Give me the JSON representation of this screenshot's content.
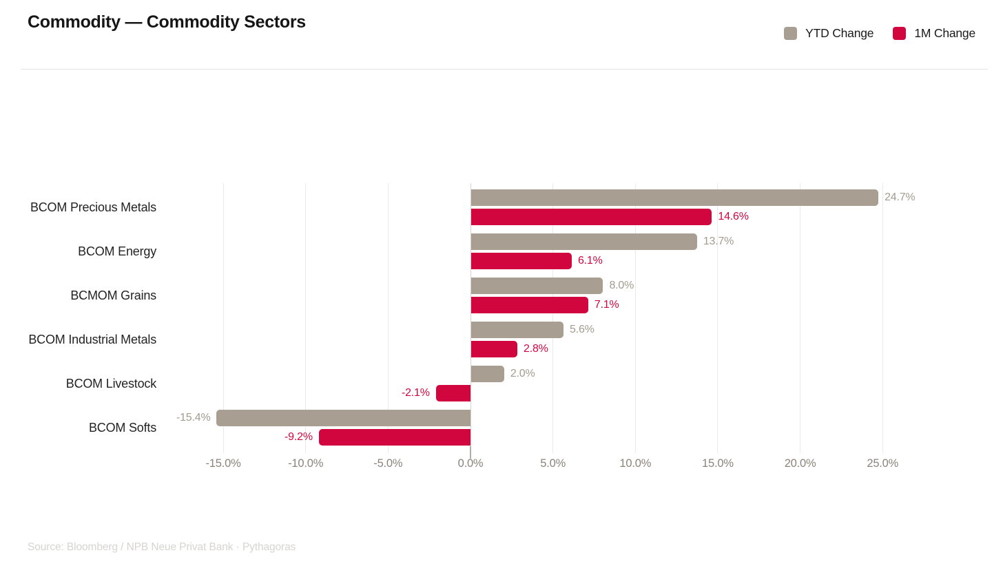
{
  "header": {
    "title": "Commodity — Commodity Sectors"
  },
  "legend": [
    {
      "label": "YTD Change",
      "color": "#a89e92"
    },
    {
      "label": "1M Change",
      "color": "#d2063f"
    }
  ],
  "footer": {
    "source": "Source: Bloomberg / NPB Neue Privat Bank · Pythagoras"
  },
  "chart_data": {
    "type": "bar",
    "orientation": "horizontal",
    "title": "Commodity — Commodity Sectors",
    "legend_position": "top-right",
    "grid": "vertical",
    "categories": [
      "BCOM Precious Metals",
      "BCOM Energy",
      "BCMOM Grains",
      "BCOM Industrial Metals",
      "BCOM Livestock",
      "BCOM Softs"
    ],
    "series": [
      {
        "name": "YTD Change",
        "color": "#a89e92",
        "label_color": "#a49b8f",
        "values": [
          24.7,
          13.7,
          8.0,
          5.6,
          2.0,
          -15.4
        ],
        "labels": [
          "24.7%",
          "13.7%",
          "8.0%",
          "5.6%",
          "2.0%",
          "-15.4%"
        ]
      },
      {
        "name": "1M Change",
        "color": "#d2063f",
        "label_color": "#d2063f",
        "values": [
          14.6,
          6.1,
          7.1,
          2.8,
          -2.1,
          -9.2
        ],
        "labels": [
          "14.6%",
          "6.1%",
          "7.1%",
          "2.8%",
          "-2.1%",
          "-9.2%"
        ]
      }
    ],
    "x_axis": {
      "tick_values": [
        -15,
        -10,
        -5,
        0,
        5,
        10,
        15,
        20,
        25
      ],
      "tick_labels": [
        "-15.0%",
        "-10.0%",
        "-5.0%",
        "0.0%",
        "5.0%",
        "10.0%",
        "15.0%",
        "20.0%",
        "25.0%"
      ],
      "xlim": [
        -16.5,
        27.5
      ],
      "unit": "%"
    }
  }
}
